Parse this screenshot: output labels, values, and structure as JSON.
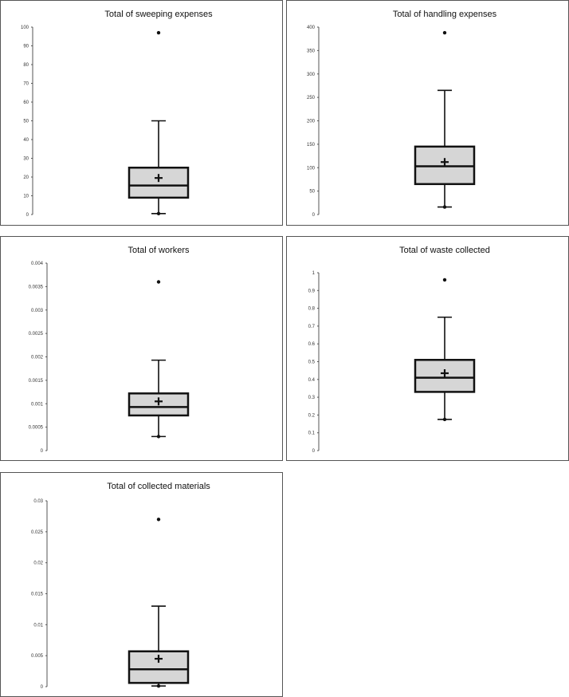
{
  "chart_data": [
    {
      "type": "boxplot",
      "title": "Total of sweeping expenses",
      "ylim": [
        0,
        100
      ],
      "ticks": [
        0,
        10,
        20,
        30,
        40,
        50,
        60,
        70,
        80,
        90,
        100
      ],
      "tick_labels": [
        "0",
        "10",
        "20",
        "30",
        "40",
        "50",
        "60",
        "70",
        "80",
        "90",
        "100"
      ],
      "min": 0.5,
      "q1": 9,
      "median": 15.5,
      "q3": 25,
      "max": 50,
      "mean": 19.5,
      "outliers": [
        97
      ],
      "min_marker": true
    },
    {
      "type": "boxplot",
      "title": "Total of handling expenses",
      "ylim": [
        0,
        400
      ],
      "ticks": [
        0,
        50,
        100,
        150,
        200,
        250,
        300,
        350,
        400
      ],
      "tick_labels": [
        "0",
        "50",
        "100",
        "150",
        "200",
        "250",
        "300",
        "350",
        "400"
      ],
      "min": 16,
      "q1": 65,
      "median": 103,
      "q3": 145,
      "max": 265,
      "mean": 112,
      "outliers": [
        388
      ],
      "min_marker": true
    },
    {
      "type": "boxplot",
      "title": "Total of workers",
      "ylim": [
        0,
        0.004
      ],
      "ticks": [
        0,
        0.0005,
        0.001,
        0.0015,
        0.002,
        0.0025,
        0.003,
        0.0035,
        0.004
      ],
      "tick_labels": [
        "0",
        "0.0005",
        "0.001",
        "0.0015",
        "0.002",
        "0.0025",
        "0.003",
        "0.0035",
        "0.004"
      ],
      "min": 0.0003,
      "q1": 0.00075,
      "median": 0.00093,
      "q3": 0.00122,
      "max": 0.00193,
      "mean": 0.00105,
      "outliers": [
        0.0036
      ],
      "min_marker": true
    },
    {
      "type": "boxplot",
      "title": "Total of waste collected",
      "ylim": [
        0,
        1
      ],
      "ticks": [
        0,
        0.1,
        0.2,
        0.3,
        0.4,
        0.5,
        0.6,
        0.7,
        0.8,
        0.9,
        1
      ],
      "tick_labels": [
        "0",
        "0.1",
        "0.2",
        "0.3",
        "0.4",
        "0.5",
        "0.6",
        "0.7",
        "0.8",
        "0.9",
        "1"
      ],
      "min": 0.175,
      "q1": 0.33,
      "median": 0.41,
      "q3": 0.51,
      "max": 0.75,
      "mean": 0.435,
      "outliers": [
        0.96
      ],
      "min_marker": true
    },
    {
      "type": "boxplot",
      "title": "Total of collected materials",
      "ylim": [
        0,
        0.03
      ],
      "ticks": [
        0,
        0.005,
        0.01,
        0.015,
        0.02,
        0.025,
        0.03
      ],
      "tick_labels": [
        "0",
        "0.005",
        "0.01",
        "0.015",
        "0.02",
        "0.025",
        "0.03"
      ],
      "min": 0.0001,
      "q1": 0.0006,
      "median": 0.0028,
      "q3": 0.0057,
      "max": 0.013,
      "mean": 0.0045,
      "outliers": [
        0.027
      ],
      "min_marker": true
    }
  ]
}
